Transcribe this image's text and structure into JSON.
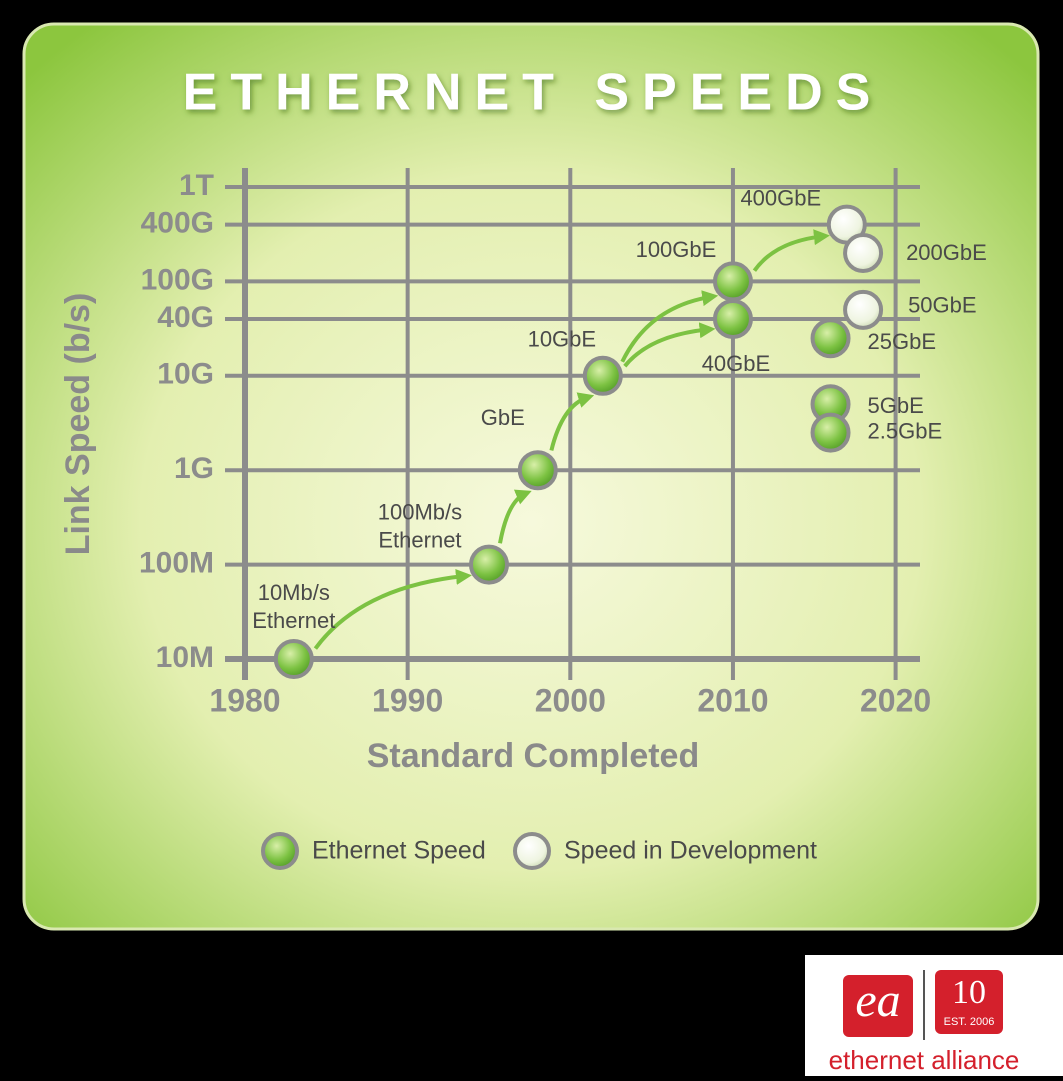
{
  "chart_data": {
    "type": "scatter",
    "title": "ETHERNET SPEEDS",
    "x_label": "Standard Completed",
    "y_label": "Link Speed (b/s)",
    "xlim": [
      1980,
      2021.5
    ],
    "xticks": [
      1980,
      1990,
      2000,
      2010,
      2020
    ],
    "ylim": [
      10000000,
      1000000000000
    ],
    "log_y": true,
    "grid": true,
    "yticks": [
      {
        "value": 10000000,
        "label": "10M"
      },
      {
        "value": 100000000,
        "label": "100M"
      },
      {
        "value": 1000000000,
        "label": "1G"
      },
      {
        "value": 10000000000,
        "label": "10G"
      },
      {
        "value": 40000000000,
        "label": "40G"
      },
      {
        "value": 100000000000,
        "label": "100G"
      },
      {
        "value": 400000000000,
        "label": "400G"
      },
      {
        "value": 1000000000000,
        "label": "1T"
      }
    ],
    "series": [
      {
        "name": "Ethernet Speed",
        "color": "#7cc242",
        "x": [
          1983,
          1995,
          1998,
          2002,
          2010,
          2010,
          2016,
          2016,
          2016
        ],
        "values": [
          10000000,
          100000000,
          1000000000,
          10000000000,
          40000000000,
          100000000000,
          25000000000,
          5000000000,
          2500000000
        ],
        "labels": [
          [
            "10Mb/s",
            "Ethernet"
          ],
          [
            "100Mb/s",
            "Ethernet"
          ],
          [
            "GbE"
          ],
          [
            "10GbE"
          ],
          [
            "40GbE"
          ],
          [
            "100GbE"
          ],
          [
            "25GbE"
          ],
          [
            "5GbE"
          ],
          [
            "2.5GbE"
          ]
        ]
      },
      {
        "name": "Speed in Development",
        "color": "#f2f6e6",
        "x": [
          2017,
          2018,
          2018
        ],
        "values": [
          400000000000,
          200000000000,
          50000000000
        ],
        "labels": [
          [
            "400GbE"
          ],
          [
            "200GbE"
          ],
          [
            "50GbE"
          ]
        ]
      }
    ]
  },
  "logo": {
    "mark": "ea",
    "badge": "10",
    "est": "EST. 2006",
    "name": "ethernet alliance"
  }
}
